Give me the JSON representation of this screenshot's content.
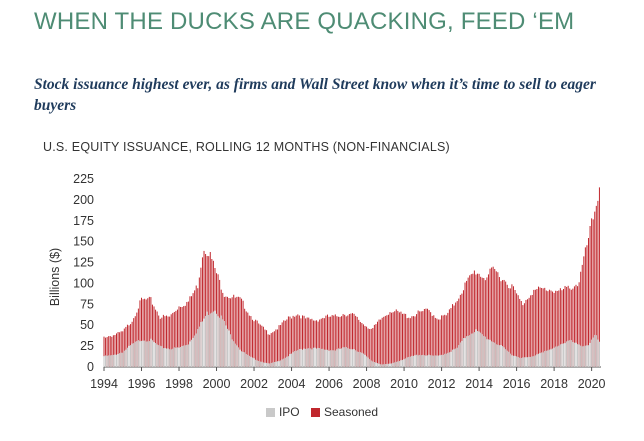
{
  "headline": "WHEN THE DUCKS ARE QUACKING, FEED ‘EM",
  "subtitle": "Stock issuance highest ever, as firms and Wall Street know when it’s time to sell to eager buyers",
  "colors": {
    "ipo": "#c9c9c9",
    "seasoned": "#c0272d",
    "headline": "#4e8c74"
  },
  "chart_data": {
    "type": "bar",
    "stacked": true,
    "title": "U.S. EQUITY ISSUANCE, ROLLING 12 MONTHS (NON-FINANCIALS)",
    "xlabel": "",
    "ylabel": "Billions ($)",
    "ylim": [
      0,
      225
    ],
    "yticks": [
      0,
      25,
      50,
      75,
      100,
      125,
      150,
      175,
      200,
      225
    ],
    "xlim": [
      1994,
      2020.5
    ],
    "xticks": [
      "1994",
      "1996",
      "1998",
      "2000",
      "2002",
      "2004",
      "2006",
      "2008",
      "2010",
      "2012",
      "2014",
      "2016",
      "2018",
      "2020"
    ],
    "legend": [
      "IPO",
      "Seasoned"
    ],
    "legend_position": "bottom-center",
    "series": [
      {
        "name": "IPO",
        "points": [
          [
            1994.0,
            13
          ],
          [
            1994.5,
            14
          ],
          [
            1995.0,
            18
          ],
          [
            1995.5,
            27
          ],
          [
            1996.0,
            33
          ],
          [
            1996.5,
            32
          ],
          [
            1997.0,
            24
          ],
          [
            1997.5,
            22
          ],
          [
            1998.0,
            23
          ],
          [
            1998.5,
            28
          ],
          [
            1999.0,
            45
          ],
          [
            1999.5,
            64
          ],
          [
            1999.9,
            70
          ],
          [
            2000.3,
            58
          ],
          [
            2000.8,
            36
          ],
          [
            2001.3,
            20
          ],
          [
            2001.8,
            12
          ],
          [
            2002.3,
            7
          ],
          [
            2002.8,
            4
          ],
          [
            2003.3,
            7
          ],
          [
            2003.8,
            13
          ],
          [
            2004.3,
            20
          ],
          [
            2004.8,
            23
          ],
          [
            2005.3,
            22
          ],
          [
            2005.8,
            21
          ],
          [
            2006.3,
            20
          ],
          [
            2006.8,
            23
          ],
          [
            2007.3,
            22
          ],
          [
            2007.8,
            16
          ],
          [
            2008.3,
            7
          ],
          [
            2008.8,
            3
          ],
          [
            2009.3,
            4
          ],
          [
            2009.8,
            8
          ],
          [
            2010.3,
            12
          ],
          [
            2010.8,
            15
          ],
          [
            2011.3,
            14
          ],
          [
            2011.8,
            13
          ],
          [
            2012.3,
            17
          ],
          [
            2012.8,
            22
          ],
          [
            2013.3,
            37
          ],
          [
            2013.8,
            44
          ],
          [
            2014.3,
            36
          ],
          [
            2014.8,
            30
          ],
          [
            2015.3,
            23
          ],
          [
            2015.8,
            14
          ],
          [
            2016.3,
            11
          ],
          [
            2016.8,
            12
          ],
          [
            2017.3,
            18
          ],
          [
            2017.8,
            20
          ],
          [
            2018.3,
            27
          ],
          [
            2018.8,
            32
          ],
          [
            2019.3,
            26
          ],
          [
            2019.8,
            26
          ],
          [
            2020.2,
            38
          ],
          [
            2020.4,
            30
          ]
        ]
      },
      {
        "name": "Seasoned",
        "points": [
          [
            1994.0,
            36
          ],
          [
            1994.5,
            38
          ],
          [
            1995.0,
            42
          ],
          [
            1995.5,
            56
          ],
          [
            1996.0,
            80
          ],
          [
            1996.5,
            80
          ],
          [
            1997.0,
            60
          ],
          [
            1997.5,
            60
          ],
          [
            1998.0,
            73
          ],
          [
            1998.5,
            78
          ],
          [
            1999.0,
            98
          ],
          [
            1999.3,
            143
          ],
          [
            1999.6,
            138
          ],
          [
            2000.0,
            112
          ],
          [
            2000.4,
            88
          ],
          [
            2000.8,
            84
          ],
          [
            2001.3,
            80
          ],
          [
            2001.8,
            62
          ],
          [
            2002.3,
            50
          ],
          [
            2002.8,
            40
          ],
          [
            2003.3,
            47
          ],
          [
            2003.8,
            58
          ],
          [
            2004.3,
            64
          ],
          [
            2004.8,
            57
          ],
          [
            2005.3,
            56
          ],
          [
            2005.8,
            60
          ],
          [
            2006.3,
            60
          ],
          [
            2006.8,
            64
          ],
          [
            2007.3,
            62
          ],
          [
            2007.8,
            52
          ],
          [
            2008.3,
            45
          ],
          [
            2008.8,
            58
          ],
          [
            2009.3,
            68
          ],
          [
            2009.8,
            64
          ],
          [
            2010.3,
            60
          ],
          [
            2010.8,
            65
          ],
          [
            2011.3,
            68
          ],
          [
            2011.8,
            58
          ],
          [
            2012.3,
            62
          ],
          [
            2012.8,
            80
          ],
          [
            2013.3,
            100
          ],
          [
            2013.8,
            115
          ],
          [
            2014.3,
            107
          ],
          [
            2014.8,
            116
          ],
          [
            2015.3,
            105
          ],
          [
            2015.8,
            95
          ],
          [
            2016.3,
            75
          ],
          [
            2016.8,
            90
          ],
          [
            2017.3,
            93
          ],
          [
            2017.8,
            93
          ],
          [
            2018.3,
            90
          ],
          [
            2018.8,
            95
          ],
          [
            2019.3,
            100
          ],
          [
            2019.7,
            140
          ],
          [
            2020.0,
            170
          ],
          [
            2020.3,
            200
          ],
          [
            2020.45,
            225
          ]
        ]
      }
    ]
  }
}
